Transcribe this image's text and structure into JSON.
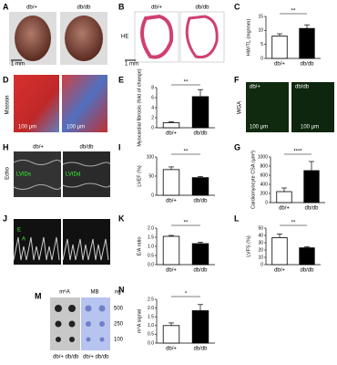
{
  "chart_data": [
    {
      "type": "bar",
      "panel": "C",
      "ylabel": "HW/TL (mg/mm)",
      "categories": [
        "db/+",
        "db/db"
      ],
      "values": [
        8,
        10.7
      ],
      "errors": [
        0.8,
        1.3
      ],
      "colors": [
        "#ffffff",
        "#000000"
      ],
      "ylim": [
        0,
        15
      ],
      "yticks": [
        0,
        5,
        10,
        15
      ],
      "significance": "**"
    },
    {
      "type": "bar",
      "panel": "E",
      "ylabel": "Myocardial fibrosis (fold of change)",
      "categories": [
        "db/+",
        "db/db"
      ],
      "values": [
        1,
        6.2
      ],
      "errors": [
        0.2,
        1.4
      ],
      "colors": [
        "#ffffff",
        "#000000"
      ],
      "ylim": [
        0,
        8
      ],
      "yticks": [
        0,
        2,
        4,
        6,
        8
      ],
      "significance": "**"
    },
    {
      "type": "bar",
      "panel": "G",
      "ylabel": "Cardiomyocyte CSA (μm²)",
      "categories": [
        "db/+",
        "db/db"
      ],
      "values": [
        240,
        700
      ],
      "errors": [
        80,
        200
      ],
      "colors": [
        "#ffffff",
        "#000000"
      ],
      "ylim": [
        0,
        1000
      ],
      "yticks": [
        0,
        200,
        400,
        600,
        800,
        1000
      ],
      "significance": "****"
    },
    {
      "type": "bar",
      "panel": "I",
      "ylabel": "LVEF (%)",
      "categories": [
        "db/+",
        "db/db"
      ],
      "values": [
        67,
        46
      ],
      "errors": [
        7,
        3
      ],
      "colors": [
        "#ffffff",
        "#000000"
      ],
      "ylim": [
        0,
        100
      ],
      "yticks": [
        0,
        50,
        100
      ],
      "significance": "**"
    },
    {
      "type": "bar",
      "panel": "K",
      "ylabel": "E/A ratio",
      "categories": [
        "db/+",
        "db/db"
      ],
      "values": [
        1.55,
        1.15
      ],
      "errors": [
        0.05,
        0.08
      ],
      "colors": [
        "#ffffff",
        "#000000"
      ],
      "ylim": [
        0,
        2
      ],
      "yticks": [
        {
          "value": 0,
          "label": "0.0"
        },
        0.5,
        {
          "value": 1,
          "label": "1.0"
        },
        1.5,
        {
          "value": 2,
          "label": "2.0"
        }
      ],
      "significance": "**"
    },
    {
      "type": "bar",
      "panel": "L",
      "ylabel": "LVFS (%)",
      "categories": [
        "db/+",
        "db/db"
      ],
      "values": [
        37,
        23
      ],
      "errors": [
        5,
        1.5
      ],
      "colors": [
        "#ffffff",
        "#000000"
      ],
      "ylim": [
        0,
        50
      ],
      "yticks": [
        0,
        10,
        20,
        30,
        40,
        50
      ],
      "significance": "**"
    },
    {
      "type": "bar",
      "panel": "N",
      "ylabel": "m⁶A signal",
      "categories": [
        "db/+",
        "db/db"
      ],
      "values": [
        1.0,
        1.85
      ],
      "errors": [
        0.15,
        0.35
      ],
      "colors": [
        "#ffffff",
        "#000000"
      ],
      "ylim": [
        0,
        2.5
      ],
      "yticks": [
        {
          "value": 0,
          "label": "0.0"
        },
        0.5,
        {
          "value": 1,
          "label": "1.0"
        },
        1.5,
        {
          "value": 2,
          "label": "2.0"
        },
        2.5
      ],
      "significance": "*"
    }
  ],
  "panels": {
    "A": {
      "label": "A",
      "groups": [
        "db/+",
        "db/db"
      ],
      "scale": "1 mm"
    },
    "B": {
      "label": "B",
      "stain": "HE",
      "groups": [
        "db/+",
        "db/db"
      ],
      "scale": "1 mm"
    },
    "D": {
      "label": "D",
      "stain": "Masson",
      "scales": [
        "100 μm",
        "100 μm"
      ]
    },
    "F": {
      "label": "F",
      "stain": "WGA",
      "groups": [
        "db/+",
        "db/db"
      ],
      "scales": [
        "100 μm",
        "100 μm"
      ]
    },
    "H": {
      "label": "H",
      "method": "Echo",
      "groups": [
        "db/+",
        "db/db"
      ],
      "markers": [
        "LVIDs",
        "LVIDd"
      ]
    },
    "J": {
      "label": "J",
      "markers": [
        "E",
        "A"
      ]
    },
    "M": {
      "label": "M",
      "blots": [
        "m⁶A",
        "MB"
      ],
      "unit": "ng",
      "amounts": [
        "500",
        "250",
        "100"
      ],
      "groups": [
        "db/+",
        "db/db",
        "db/+",
        "db/db"
      ]
    }
  }
}
